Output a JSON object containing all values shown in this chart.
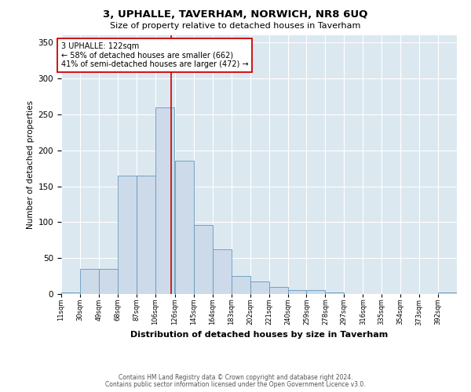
{
  "title": "3, UPHALLE, TAVERHAM, NORWICH, NR8 6UQ",
  "subtitle": "Size of property relative to detached houses in Taverham",
  "xlabel": "Distribution of detached houses by size in Taverham",
  "ylabel": "Number of detached properties",
  "bar_labels": [
    "11sqm",
    "30sqm",
    "49sqm",
    "68sqm",
    "87sqm",
    "106sqm",
    "126sqm",
    "145sqm",
    "164sqm",
    "183sqm",
    "202sqm",
    "221sqm",
    "240sqm",
    "259sqm",
    "278sqm",
    "297sqm",
    "316sqm",
    "335sqm",
    "354sqm",
    "373sqm",
    "392sqm"
  ],
  "bar_heights": [
    2,
    35,
    35,
    165,
    165,
    260,
    185,
    96,
    62,
    25,
    18,
    10,
    6,
    5,
    2,
    0,
    0,
    0,
    0,
    0,
    2
  ],
  "bin_left_edges": [
    11,
    30,
    49,
    68,
    87,
    106,
    126,
    145,
    164,
    183,
    202,
    221,
    240,
    259,
    278,
    297,
    316,
    335,
    354,
    373,
    392
  ],
  "bin_width": 19,
  "bar_color": "#ccdaea",
  "bar_edge_color": "#6699bb",
  "vline_x": 122,
  "vline_color": "#cc0000",
  "annotation_text": "3 UPHALLE: 122sqm\n← 58% of detached houses are smaller (662)\n41% of semi-detached houses are larger (472) →",
  "annotation_box_color": "#ffffff",
  "annotation_box_edge": "#cc0000",
  "ylim": [
    0,
    360
  ],
  "yticks": [
    0,
    50,
    100,
    150,
    200,
    250,
    300,
    350
  ],
  "xlim": [
    11,
    411
  ],
  "background_color": "#dce8f0",
  "grid_color": "#ffffff",
  "footer_line1": "Contains HM Land Registry data © Crown copyright and database right 2024.",
  "footer_line2": "Contains public sector information licensed under the Open Government Licence v3.0."
}
